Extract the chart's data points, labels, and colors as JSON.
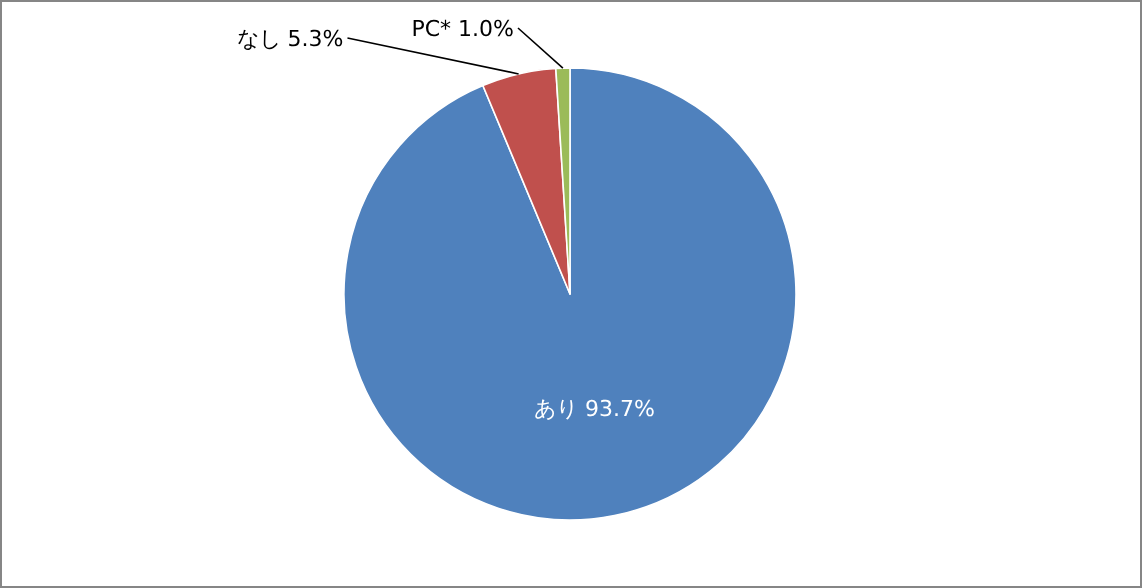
{
  "chart_data": {
    "type": "pie",
    "categories": [
      "あり",
      "なし",
      "PC*"
    ],
    "values": [
      93.7,
      5.3,
      1.0
    ],
    "value_labels": [
      "93.7%",
      "5.3%",
      "1.0%"
    ],
    "colors": [
      "#4f81bd",
      "#c0504d",
      "#9bbb59"
    ]
  }
}
